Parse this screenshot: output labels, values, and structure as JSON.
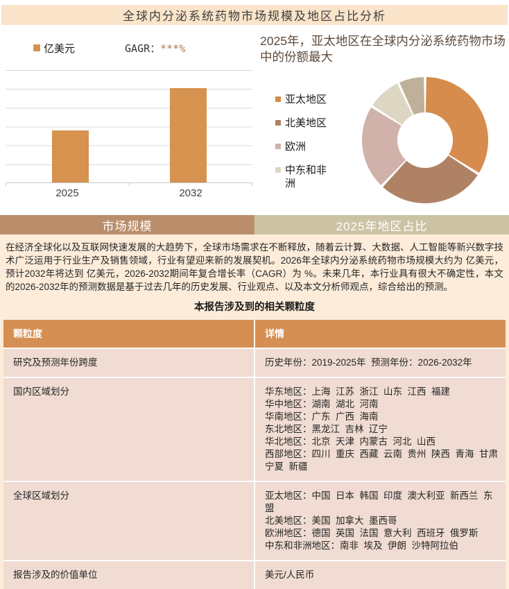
{
  "page_title": "全球内分泌系统药物市场规模及地区占比分析",
  "colors": {
    "title_bar_bg": "#fae4ca",
    "bar_fill": "#d6924f",
    "tab_market_bg": "#ba8e6b",
    "tab_region_bg": "#ccc3a5",
    "content_bg": "#fdecd9",
    "table_header_bg": "#d68f52",
    "table_row_bg": "#f0dcd2",
    "cagr_value_color": "#b07a4a"
  },
  "chart_data": [
    {
      "type": "bar",
      "title": "",
      "legend_label": "亿美元",
      "growth_label": "GAGR：",
      "growth_value": "***%",
      "categories": [
        "2025",
        "2032"
      ],
      "values_labeled": false,
      "values_relative_pct": [
        46,
        84
      ],
      "bar_color": "#d6924f",
      "grid": true,
      "y_axis_tick_labels": false
    },
    {
      "type": "donut",
      "title": "2025年，亚太地区在全球内分泌系统药物市场中的份额最大",
      "legend_position": "left",
      "values_labeled": false,
      "inner_radius_ratio": 0.44,
      "segments": [
        {
          "label": "亚太地区",
          "pct": 34,
          "color": "#d68c4c",
          "in_legend": true
        },
        {
          "label": "北美地区",
          "pct": 28,
          "color": "#b08265",
          "in_legend": true
        },
        {
          "label": "欧洲",
          "pct": 22,
          "color": "#d0b2ab",
          "in_legend": true
        },
        {
          "label": "中东和非洲",
          "pct": 9,
          "color": "#ddd6c2",
          "in_legend": true
        },
        {
          "label": "",
          "pct": 7,
          "color": "#bfb199",
          "in_legend": false
        }
      ]
    }
  ],
  "tabs": [
    {
      "label": "市场规模"
    },
    {
      "label": "2025年地区占比"
    }
  ],
  "summary": {
    "paragraph": "在经济全球化以及互联网快速发展的大趋势下，全球市场需求在不断释放，随着云计算、大数据、人工智能等新兴数字技术广泛运用于行业生产及销售领域，行业有望迎来新的发展契机。2026年全球内分泌系统药物市场规模大约为 亿美元，预计2032年将达到 亿美元，2026-2032期间年复合增长率（CAGR）为 %。未来几年，本行业具有很大不确定性，本文的2026-2032年的预测数据是基于过去几年的历史发展、行业观点、以及本文分析师观点，综合给出的预测。",
    "granularity_title": "本报告涉及到的相关颗粒度"
  },
  "table": {
    "headers": [
      "颗粒度",
      "详情"
    ],
    "rows": [
      {
        "label": "研究及预测年份跨度",
        "details": [
          "历史年份：2019-2025年  预测年份：2026-2032年"
        ]
      },
      {
        "label": "国内区域划分",
        "details": [
          "华东地区：上海  江苏  浙江  山东  江西  福建",
          "华中地区：湖南  湖北  河南",
          "华南地区：广东  广西  海南",
          "东北地区：黑龙江  吉林  辽宁",
          "华北地区：北京  天津  内蒙古  河北  山西",
          "西部地区：四川  重庆  西藏  云南  贵州  陕西  青海  甘肃  宁夏  新疆"
        ]
      },
      {
        "label": "全球区域划分",
        "details": [
          "亚太地区：中国  日本  韩国  印度  澳大利亚  新西兰  东盟",
          "北美地区：美国  加拿大  墨西哥",
          "欧洲地区：德国  英国  法国  意大利  西班牙  俄罗斯",
          "中东和非洲地区：南非  埃及  伊朗  沙特阿拉伯"
        ]
      },
      {
        "label": "报告涉及的价值单位",
        "details": [
          "美元/人民币"
        ]
      }
    ]
  }
}
